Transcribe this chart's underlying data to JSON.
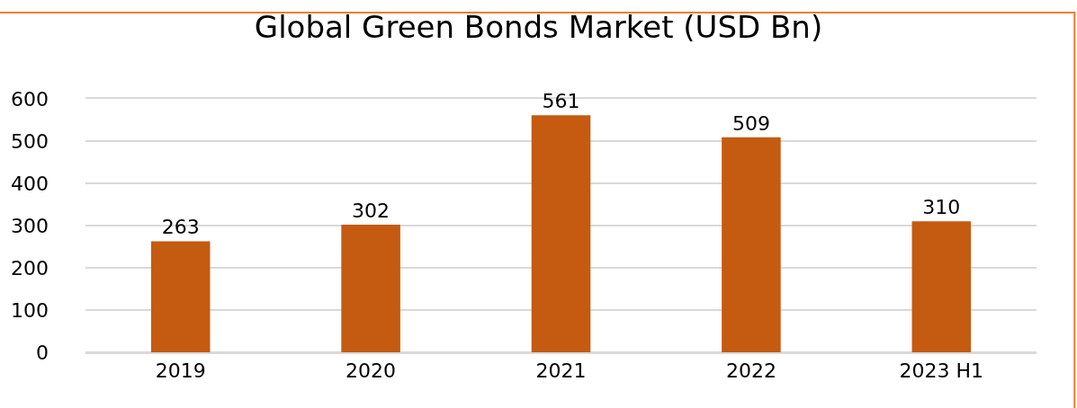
{
  "chart_data": {
    "type": "bar",
    "title": "Global Green Bonds Market (USD Bn)",
    "categories": [
      "2019",
      "2020",
      "2021",
      "2022",
      "2023 H1"
    ],
    "values": [
      263,
      302,
      561,
      509,
      310
    ],
    "color": "#c55a11",
    "ylim": [
      0,
      600
    ],
    "yticks": [
      0,
      100,
      200,
      300,
      400,
      500,
      600
    ],
    "grid": "y",
    "data_labels": true,
    "legend": false
  }
}
